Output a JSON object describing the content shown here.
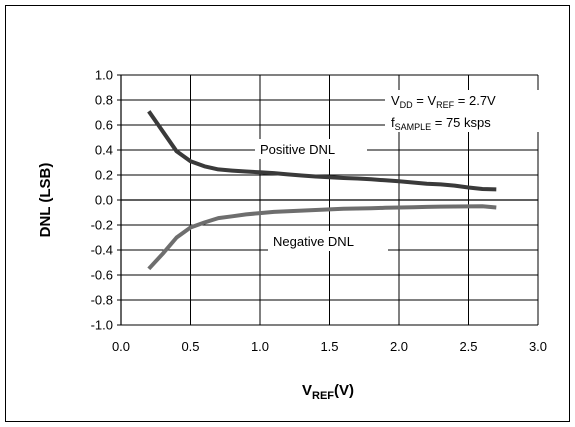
{
  "chart_data": {
    "type": "line",
    "title": "",
    "xlabel": {
      "main": "V",
      "sub": "REF",
      "suffix": "(V)"
    },
    "ylabel": "DNL (LSB)",
    "xlim": [
      0.0,
      3.0
    ],
    "ylim": [
      -1.0,
      1.0
    ],
    "x_ticks": [
      0.0,
      0.5,
      1.0,
      1.5,
      2.0,
      2.5,
      3.0
    ],
    "x_tick_labels": [
      "0.0",
      "0.5",
      "1.0",
      "1.5",
      "2.0",
      "2.5",
      "3.0"
    ],
    "y_ticks": [
      1.0,
      0.8,
      0.6,
      0.4,
      0.2,
      0.0,
      -0.2,
      -0.4,
      -0.6,
      -0.8,
      -1.0
    ],
    "y_tick_labels": [
      "1.0",
      "0.8",
      "0.6",
      "0.4",
      "0.2",
      "0.0",
      "-0.2",
      "-0.4",
      "-0.6",
      "-0.8",
      "-1.0"
    ],
    "grid": true,
    "series": [
      {
        "name": "Positive DNL",
        "color": "#3a3a3a",
        "x": [
          0.2,
          0.3,
          0.4,
          0.5,
          0.6,
          0.7,
          0.8,
          0.9,
          1.0,
          1.1,
          1.2,
          1.3,
          1.4,
          1.5,
          1.6,
          1.7,
          1.8,
          1.9,
          2.0,
          2.1,
          2.2,
          2.3,
          2.4,
          2.5,
          2.6,
          2.7
        ],
        "y": [
          0.71,
          0.55,
          0.39,
          0.31,
          0.27,
          0.245,
          0.235,
          0.228,
          0.222,
          0.215,
          0.205,
          0.196,
          0.188,
          0.182,
          0.176,
          0.172,
          0.166,
          0.158,
          0.15,
          0.14,
          0.13,
          0.125,
          0.115,
          0.1,
          0.088,
          0.085
        ]
      },
      {
        "name": "Negative DNL",
        "color": "#6e6e6e",
        "x": [
          0.2,
          0.3,
          0.4,
          0.5,
          0.6,
          0.7,
          0.8,
          0.9,
          1.0,
          1.1,
          1.2,
          1.3,
          1.4,
          1.5,
          1.6,
          1.7,
          1.8,
          1.9,
          2.0,
          2.1,
          2.2,
          2.3,
          2.4,
          2.5,
          2.6,
          2.7
        ],
        "y": [
          -0.55,
          -0.43,
          -0.3,
          -0.22,
          -0.18,
          -0.145,
          -0.13,
          -0.115,
          -0.105,
          -0.095,
          -0.09,
          -0.085,
          -0.08,
          -0.075,
          -0.07,
          -0.068,
          -0.066,
          -0.062,
          -0.06,
          -0.058,
          -0.055,
          -0.053,
          -0.052,
          -0.051,
          -0.05,
          -0.06
        ]
      }
    ],
    "series_labels": [
      "Positive DNL",
      "Negative DNL"
    ],
    "annotation": {
      "line1": {
        "a_main": "V",
        "a_sub": "DD",
        "eq1": " = ",
        "b_main": "V",
        "b_sub": "REF",
        "eq2": " = 2.7V"
      },
      "line2": {
        "main": "f",
        "sub": "SAMPLE",
        "rest": " = 75 ksps"
      }
    }
  }
}
